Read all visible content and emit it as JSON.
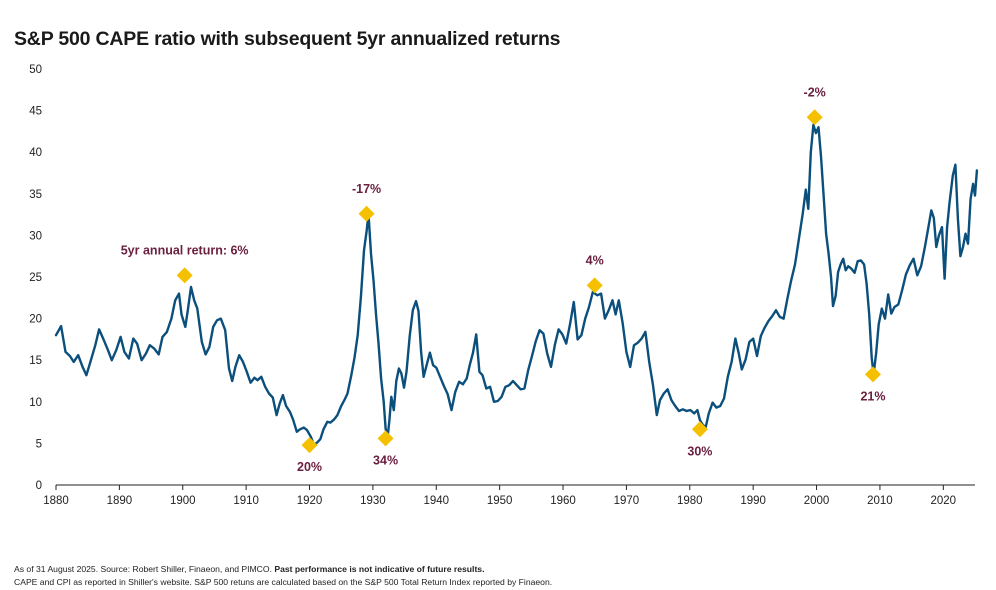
{
  "chart_data": {
    "type": "line",
    "title": "S&P 500 CAPE ratio with subsequent 5yr annualized returns",
    "xlabel": "",
    "ylabel": "",
    "xlim": [
      1880,
      2025
    ],
    "ylim": [
      0,
      50
    ],
    "x_ticks": [
      "1880",
      "1890",
      "1900",
      "1910",
      "1920",
      "1930",
      "1940",
      "1950",
      "1960",
      "1970",
      "1980",
      "1990",
      "2000",
      "2010",
      "2020"
    ],
    "y_ticks": [
      "0",
      "5",
      "10",
      "15",
      "20",
      "25",
      "30",
      "35",
      "40",
      "45",
      "50"
    ],
    "grid": false,
    "legend": "none",
    "colors": {
      "line": "#0b4f7c",
      "marker": "#f5c000",
      "annotation": "#6b2040",
      "axis": "#222222"
    },
    "series": [
      {
        "values": [
          [
            1880,
            18.0
          ],
          [
            1880.8,
            19.1
          ],
          [
            1881.5,
            16.0
          ],
          [
            1882.2,
            15.5
          ],
          [
            1882.8,
            14.8
          ],
          [
            1883.5,
            15.6
          ],
          [
            1884.2,
            14.2
          ],
          [
            1884.8,
            13.2
          ],
          [
            1885.5,
            15.0
          ],
          [
            1886.2,
            16.8
          ],
          [
            1886.8,
            18.7
          ],
          [
            1887.5,
            17.5
          ],
          [
            1888.2,
            16.2
          ],
          [
            1888.8,
            15.0
          ],
          [
            1889.5,
            16.2
          ],
          [
            1890.2,
            17.8
          ],
          [
            1890.8,
            16.0
          ],
          [
            1891.5,
            15.2
          ],
          [
            1892.2,
            17.6
          ],
          [
            1892.8,
            17.0
          ],
          [
            1893.5,
            15.0
          ],
          [
            1894.2,
            15.8
          ],
          [
            1894.8,
            16.8
          ],
          [
            1895.5,
            16.4
          ],
          [
            1896.2,
            15.7
          ],
          [
            1896.8,
            17.8
          ],
          [
            1897.5,
            18.4
          ],
          [
            1898.2,
            20.0
          ],
          [
            1898.8,
            22.2
          ],
          [
            1899.4,
            23.0
          ],
          [
            1899.8,
            20.5
          ],
          [
            1900.4,
            19.0
          ],
          [
            1900.8,
            21.0
          ],
          [
            1901.3,
            23.8
          ],
          [
            1901.8,
            22.2
          ],
          [
            1902.3,
            21.2
          ],
          [
            1903.0,
            17.2
          ],
          [
            1903.6,
            15.7
          ],
          [
            1904.2,
            16.6
          ],
          [
            1904.8,
            19.0
          ],
          [
            1905.4,
            19.8
          ],
          [
            1906.0,
            20.0
          ],
          [
            1906.7,
            18.6
          ],
          [
            1907.3,
            14.0
          ],
          [
            1907.8,
            12.5
          ],
          [
            1908.3,
            14.2
          ],
          [
            1908.9,
            15.6
          ],
          [
            1909.5,
            14.8
          ],
          [
            1910.1,
            13.6
          ],
          [
            1910.7,
            12.3
          ],
          [
            1911.3,
            12.9
          ],
          [
            1911.8,
            12.6
          ],
          [
            1912.4,
            13.0
          ],
          [
            1913.0,
            11.8
          ],
          [
            1913.6,
            11.0
          ],
          [
            1914.2,
            10.5
          ],
          [
            1914.8,
            8.4
          ],
          [
            1915.3,
            9.8
          ],
          [
            1915.8,
            10.8
          ],
          [
            1916.3,
            9.5
          ],
          [
            1916.9,
            8.8
          ],
          [
            1917.4,
            7.9
          ],
          [
            1918.0,
            6.4
          ],
          [
            1918.5,
            6.7
          ],
          [
            1919.1,
            6.9
          ],
          [
            1919.6,
            6.6
          ],
          [
            1920.2,
            5.8
          ],
          [
            1920.7,
            4.8
          ],
          [
            1921.2,
            5.1
          ],
          [
            1921.7,
            5.5
          ],
          [
            1922.2,
            6.7
          ],
          [
            1922.8,
            7.6
          ],
          [
            1923.3,
            7.5
          ],
          [
            1923.9,
            7.9
          ],
          [
            1924.4,
            8.4
          ],
          [
            1925.0,
            9.5
          ],
          [
            1925.5,
            10.2
          ],
          [
            1926.0,
            11.0
          ],
          [
            1926.6,
            13.2
          ],
          [
            1927.1,
            15.3
          ],
          [
            1927.6,
            18.0
          ],
          [
            1928.1,
            22.6
          ],
          [
            1928.6,
            28.2
          ],
          [
            1929.0,
            30.5
          ],
          [
            1929.3,
            32.6
          ],
          [
            1929.7,
            27.8
          ],
          [
            1930.1,
            24.6
          ],
          [
            1930.5,
            20.4
          ],
          [
            1930.9,
            16.9
          ],
          [
            1931.3,
            12.8
          ],
          [
            1931.7,
            10.0
          ],
          [
            1932.0,
            6.8
          ],
          [
            1932.3,
            5.6
          ],
          [
            1932.6,
            7.8
          ],
          [
            1932.9,
            10.6
          ],
          [
            1933.3,
            9.0
          ],
          [
            1933.7,
            12.5
          ],
          [
            1934.1,
            14.0
          ],
          [
            1934.5,
            13.4
          ],
          [
            1934.9,
            11.7
          ],
          [
            1935.3,
            13.6
          ],
          [
            1935.8,
            17.9
          ],
          [
            1936.3,
            21.0
          ],
          [
            1936.8,
            22.1
          ],
          [
            1937.2,
            20.9
          ],
          [
            1937.6,
            16.0
          ],
          [
            1938.0,
            13.0
          ],
          [
            1938.5,
            14.5
          ],
          [
            1939.0,
            15.9
          ],
          [
            1939.5,
            14.4
          ],
          [
            1940.0,
            14.1
          ],
          [
            1940.6,
            13.0
          ],
          [
            1941.2,
            11.9
          ],
          [
            1941.8,
            10.9
          ],
          [
            1942.4,
            9.0
          ],
          [
            1943.0,
            11.2
          ],
          [
            1943.6,
            12.4
          ],
          [
            1944.2,
            12.1
          ],
          [
            1944.8,
            12.8
          ],
          [
            1945.3,
            14.5
          ],
          [
            1945.8,
            15.9
          ],
          [
            1946.3,
            18.1
          ],
          [
            1946.8,
            13.6
          ],
          [
            1947.3,
            13.2
          ],
          [
            1947.9,
            11.6
          ],
          [
            1948.5,
            11.8
          ],
          [
            1949.1,
            10.0
          ],
          [
            1949.7,
            10.1
          ],
          [
            1950.3,
            10.6
          ],
          [
            1950.9,
            11.8
          ],
          [
            1951.5,
            12.0
          ],
          [
            1952.1,
            12.5
          ],
          [
            1952.7,
            12.0
          ],
          [
            1953.3,
            11.5
          ],
          [
            1953.9,
            11.6
          ],
          [
            1954.5,
            13.8
          ],
          [
            1955.1,
            15.5
          ],
          [
            1955.7,
            17.3
          ],
          [
            1956.3,
            18.6
          ],
          [
            1956.9,
            18.2
          ],
          [
            1957.5,
            15.8
          ],
          [
            1958.1,
            14.2
          ],
          [
            1958.7,
            16.8
          ],
          [
            1959.3,
            18.7
          ],
          [
            1959.9,
            18.1
          ],
          [
            1960.5,
            17.0
          ],
          [
            1961.1,
            19.3
          ],
          [
            1961.7,
            22.0
          ],
          [
            1962.3,
            17.5
          ],
          [
            1962.9,
            18.0
          ],
          [
            1963.5,
            20.0
          ],
          [
            1964.1,
            21.4
          ],
          [
            1964.7,
            23.2
          ],
          [
            1965.4,
            22.8
          ],
          [
            1966.0,
            23.0
          ],
          [
            1966.6,
            20.0
          ],
          [
            1967.2,
            21.0
          ],
          [
            1967.8,
            22.2
          ],
          [
            1968.3,
            20.5
          ],
          [
            1968.8,
            22.2
          ],
          [
            1969.4,
            19.5
          ],
          [
            1970.0,
            16.0
          ],
          [
            1970.6,
            14.2
          ],
          [
            1971.2,
            16.8
          ],
          [
            1971.8,
            17.1
          ],
          [
            1972.4,
            17.6
          ],
          [
            1973.0,
            18.4
          ],
          [
            1973.6,
            14.8
          ],
          [
            1974.2,
            12.0
          ],
          [
            1974.8,
            8.4
          ],
          [
            1975.3,
            10.2
          ],
          [
            1975.9,
            11.0
          ],
          [
            1976.5,
            11.5
          ],
          [
            1977.1,
            10.2
          ],
          [
            1977.7,
            9.5
          ],
          [
            1978.3,
            8.9
          ],
          [
            1978.9,
            9.1
          ],
          [
            1979.5,
            8.9
          ],
          [
            1980.1,
            9.0
          ],
          [
            1980.7,
            8.6
          ],
          [
            1981.2,
            9.0
          ],
          [
            1981.6,
            7.8
          ],
          [
            1982.0,
            7.3
          ],
          [
            1982.5,
            6.9
          ],
          [
            1983.0,
            8.6
          ],
          [
            1983.6,
            9.9
          ],
          [
            1984.2,
            9.3
          ],
          [
            1984.8,
            9.5
          ],
          [
            1985.4,
            10.4
          ],
          [
            1986.0,
            13.0
          ],
          [
            1986.6,
            14.8
          ],
          [
            1987.2,
            17.6
          ],
          [
            1987.7,
            15.9
          ],
          [
            1988.2,
            13.9
          ],
          [
            1988.8,
            15.1
          ],
          [
            1989.4,
            17.2
          ],
          [
            1990.0,
            17.6
          ],
          [
            1990.6,
            15.5
          ],
          [
            1991.2,
            17.9
          ],
          [
            1991.8,
            18.9
          ],
          [
            1992.4,
            19.7
          ],
          [
            1993.0,
            20.3
          ],
          [
            1993.6,
            21.0
          ],
          [
            1994.2,
            20.2
          ],
          [
            1994.8,
            20.0
          ],
          [
            1995.4,
            22.4
          ],
          [
            1996.0,
            24.6
          ],
          [
            1996.6,
            26.5
          ],
          [
            1997.2,
            29.5
          ],
          [
            1997.8,
            32.5
          ],
          [
            1998.3,
            35.5
          ],
          [
            1998.7,
            33.2
          ],
          [
            1999.1,
            40.0
          ],
          [
            1999.5,
            43.3
          ],
          [
            1999.9,
            42.3
          ],
          [
            2000.3,
            43.0
          ],
          [
            2000.7,
            39.5
          ],
          [
            2001.1,
            35.0
          ],
          [
            2001.5,
            30.2
          ],
          [
            2001.9,
            27.8
          ],
          [
            2002.3,
            24.9
          ],
          [
            2002.6,
            21.5
          ],
          [
            2003.0,
            22.7
          ],
          [
            2003.4,
            25.6
          ],
          [
            2003.8,
            26.5
          ],
          [
            2004.2,
            27.2
          ],
          [
            2004.6,
            25.8
          ],
          [
            2005.0,
            26.3
          ],
          [
            2005.5,
            26.0
          ],
          [
            2006.0,
            25.5
          ],
          [
            2006.5,
            26.9
          ],
          [
            2007.0,
            27.0
          ],
          [
            2007.5,
            26.5
          ],
          [
            2007.9,
            24.2
          ],
          [
            2008.3,
            20.5
          ],
          [
            2008.7,
            15.3
          ],
          [
            2009.0,
            13.3
          ],
          [
            2009.4,
            15.8
          ],
          [
            2009.8,
            19.3
          ],
          [
            2010.3,
            21.2
          ],
          [
            2010.8,
            20.0
          ],
          [
            2011.3,
            22.9
          ],
          [
            2011.8,
            20.6
          ],
          [
            2012.3,
            21.4
          ],
          [
            2012.9,
            21.7
          ],
          [
            2013.5,
            23.4
          ],
          [
            2014.1,
            25.3
          ],
          [
            2014.7,
            26.4
          ],
          [
            2015.3,
            27.2
          ],
          [
            2015.9,
            25.2
          ],
          [
            2016.5,
            26.3
          ],
          [
            2017.1,
            28.6
          ],
          [
            2017.7,
            31.2
          ],
          [
            2018.1,
            33.0
          ],
          [
            2018.5,
            32.1
          ],
          [
            2018.9,
            28.6
          ],
          [
            2019.3,
            30.0
          ],
          [
            2019.8,
            31.0
          ],
          [
            2020.2,
            24.8
          ],
          [
            2020.6,
            31.0
          ],
          [
            2021.0,
            34.0
          ],
          [
            2021.5,
            37.2
          ],
          [
            2021.9,
            38.5
          ],
          [
            2022.3,
            32.0
          ],
          [
            2022.7,
            27.5
          ],
          [
            2023.1,
            28.6
          ],
          [
            2023.5,
            30.2
          ],
          [
            2023.9,
            29.0
          ],
          [
            2024.3,
            34.4
          ],
          [
            2024.7,
            36.2
          ],
          [
            2025.0,
            34.8
          ],
          [
            2025.3,
            37.8
          ]
        ]
      }
    ],
    "annotations": [
      {
        "x": 1900.3,
        "y": 25.2,
        "label": "5yr annual return: 6%",
        "label_pos": "above"
      },
      {
        "x": 1920.0,
        "y": 4.8,
        "label": "20%",
        "label_pos": "below"
      },
      {
        "x": 1929.0,
        "y": 32.6,
        "label": "-17%",
        "label_pos": "above"
      },
      {
        "x": 1932.0,
        "y": 5.6,
        "label": "34%",
        "label_pos": "below"
      },
      {
        "x": 1965.0,
        "y": 24.0,
        "label": "4%",
        "label_pos": "above"
      },
      {
        "x": 1981.6,
        "y": 6.7,
        "label": "30%",
        "label_pos": "below"
      },
      {
        "x": 1999.7,
        "y": 44.2,
        "label": "-2%",
        "label_pos": "above"
      },
      {
        "x": 2008.9,
        "y": 13.3,
        "label": "21%",
        "label_pos": "below"
      }
    ]
  },
  "footnotes": {
    "line1_plain": "As of 31 August 2025. Source: Robert Shiller, Finaeon, and PIMCO. ",
    "line1_bold": "Past performance is not indicative of future results.",
    "line2": "CAPE and CPI as reported in Shiller's website. S&P 500 retuns are calculated based on the S&P 500 Total Return Index reported by Finaeon."
  }
}
